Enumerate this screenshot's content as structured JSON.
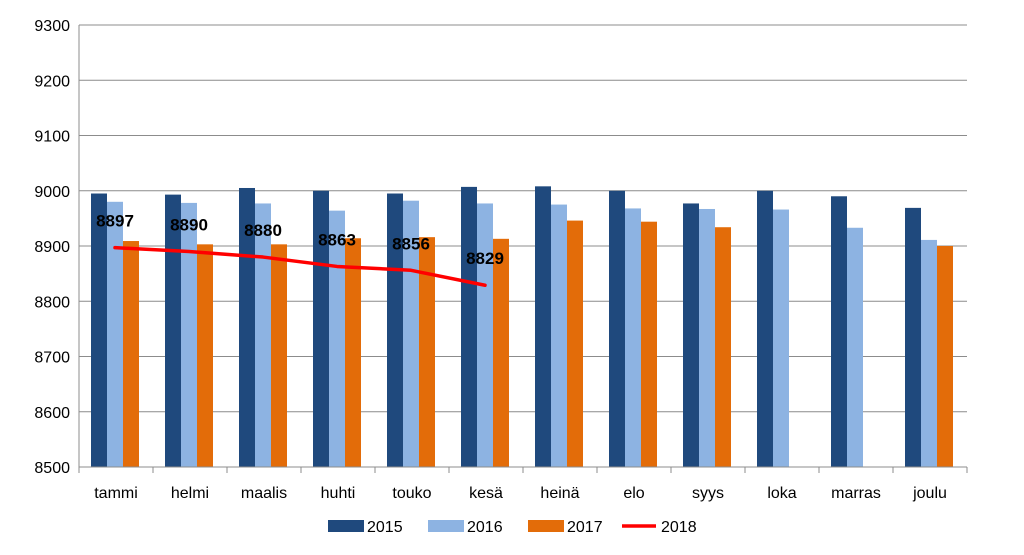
{
  "chart_data": {
    "type": "bar",
    "categories": [
      "tammi",
      "helmi",
      "maalis",
      "huhti",
      "touko",
      "kesä",
      "heinä",
      "elo",
      "syys",
      "loka",
      "marras",
      "joulu"
    ],
    "series": [
      {
        "name": "2015",
        "kind": "bar",
        "color": "#1f497d",
        "values": [
          8995,
          8993,
          9005,
          9000,
          8995,
          9007,
          9008,
          9000,
          8977,
          9000,
          8990,
          8969
        ]
      },
      {
        "name": "2016",
        "kind": "bar",
        "color": "#8db3e2",
        "values": [
          8980,
          8978,
          8977,
          8964,
          8982,
          8977,
          8975,
          8968,
          8967,
          8966,
          8933,
          8911
        ]
      },
      {
        "name": "2017",
        "kind": "bar",
        "color": "#e36c09",
        "values": [
          8909,
          8903,
          8903,
          8914,
          8916,
          8913,
          8946,
          8944,
          8934,
          null,
          null,
          8900
        ]
      },
      {
        "name": "2018",
        "kind": "line",
        "color": "#ff0000",
        "values": [
          8897,
          8890,
          8880,
          8863,
          8856,
          8829,
          null,
          null,
          null,
          null,
          null,
          null
        ],
        "labels": [
          "8897",
          "8890",
          "8880",
          "8863",
          "8856",
          "8829"
        ]
      }
    ],
    "ylim": [
      8500,
      9300
    ],
    "yticks": [
      8500,
      8600,
      8700,
      8800,
      8900,
      9000,
      9100,
      9200,
      9300
    ],
    "grid": true,
    "legend": "bottom",
    "title": "",
    "xlabel": "",
    "ylabel": ""
  }
}
